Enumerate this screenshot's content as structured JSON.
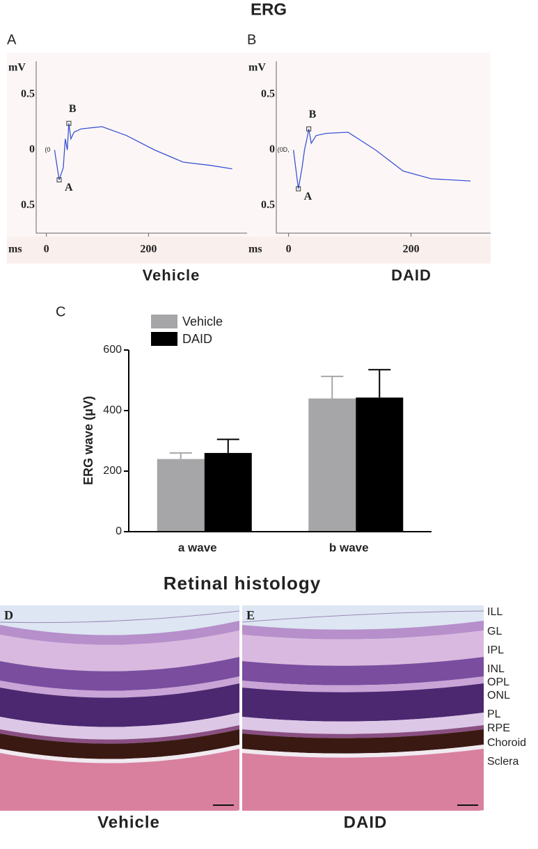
{
  "title": "ERG",
  "chart_data": [
    {
      "type": "line",
      "panel": "A",
      "caption": "Vehicle",
      "y_label": "mV",
      "x_label": "ms",
      "start_label": "(0",
      "color": "#3a52d4",
      "x": [
        16,
        25,
        33,
        37,
        41,
        44,
        48,
        54,
        68,
        109,
        157,
        212,
        268,
        323,
        364
      ],
      "values": [
        0,
        -0.27,
        -0.16,
        0.1,
        0,
        0.24,
        0.1,
        0.16,
        0.19,
        0.21,
        0.13,
        0,
        -0.11,
        -0.14,
        -0.17
      ],
      "points": [
        {
          "label": "A",
          "x": 25,
          "y": -0.27
        },
        {
          "label": "B",
          "x": 44,
          "y": 0.24
        }
      ],
      "xlim": [
        -20,
        400
      ],
      "ylim": [
        -0.75,
        0.8
      ],
      "xticks": [
        0,
        200
      ],
      "yticks": [
        {
          "value": -0.5,
          "label": "0.5"
        },
        0,
        0.5
      ]
    },
    {
      "type": "line",
      "panel": "B",
      "caption": "DAID",
      "y_label": "mV",
      "x_label": "ms",
      "start_label": "(0D,",
      "color": "#3a52d4",
      "x": [
        8,
        16,
        22,
        26,
        30,
        33,
        37,
        45,
        62,
        97,
        142,
        187,
        233,
        297
      ],
      "values": [
        0,
        -0.35,
        -0.16,
        0,
        0.1,
        0.19,
        0.06,
        0.13,
        0.15,
        0.16,
        0,
        -0.19,
        -0.26,
        -0.28
      ],
      "points": [
        {
          "label": "A",
          "x": 16,
          "y": -0.35
        },
        {
          "label": "B",
          "x": 33,
          "y": 0.19
        }
      ],
      "xlim": [
        -20,
        330
      ],
      "ylim": [
        -0.75,
        0.8
      ],
      "xticks": [
        0,
        200
      ],
      "yticks": [
        {
          "value": -0.5,
          "label": "0.5"
        },
        0,
        0.5
      ]
    },
    {
      "type": "bar",
      "panel": "C",
      "y_label": "ERG wave (μV)",
      "categories": [
        "a wave",
        "b wave"
      ],
      "series": [
        {
          "name": "Vehicle",
          "color": "#a6a6a9",
          "values": [
            240,
            440
          ],
          "errors": [
            20,
            73
          ]
        },
        {
          "name": "DAID",
          "color": "#000000",
          "values": [
            260,
            443
          ],
          "errors": [
            45,
            92
          ]
        }
      ],
      "ylim": [
        0,
        600
      ],
      "yticks": [
        0,
        200,
        400,
        600
      ]
    }
  ],
  "histology": {
    "title": "Retinal histology",
    "panels": [
      {
        "label": "D",
        "caption": "Vehicle"
      },
      {
        "label": "E",
        "caption": "DAID"
      }
    ],
    "layers": [
      "ILL",
      "GL",
      "IPL",
      "INL",
      "OPL",
      "ONL",
      "PL",
      "RPE",
      "Choroid",
      "Sclera"
    ]
  }
}
